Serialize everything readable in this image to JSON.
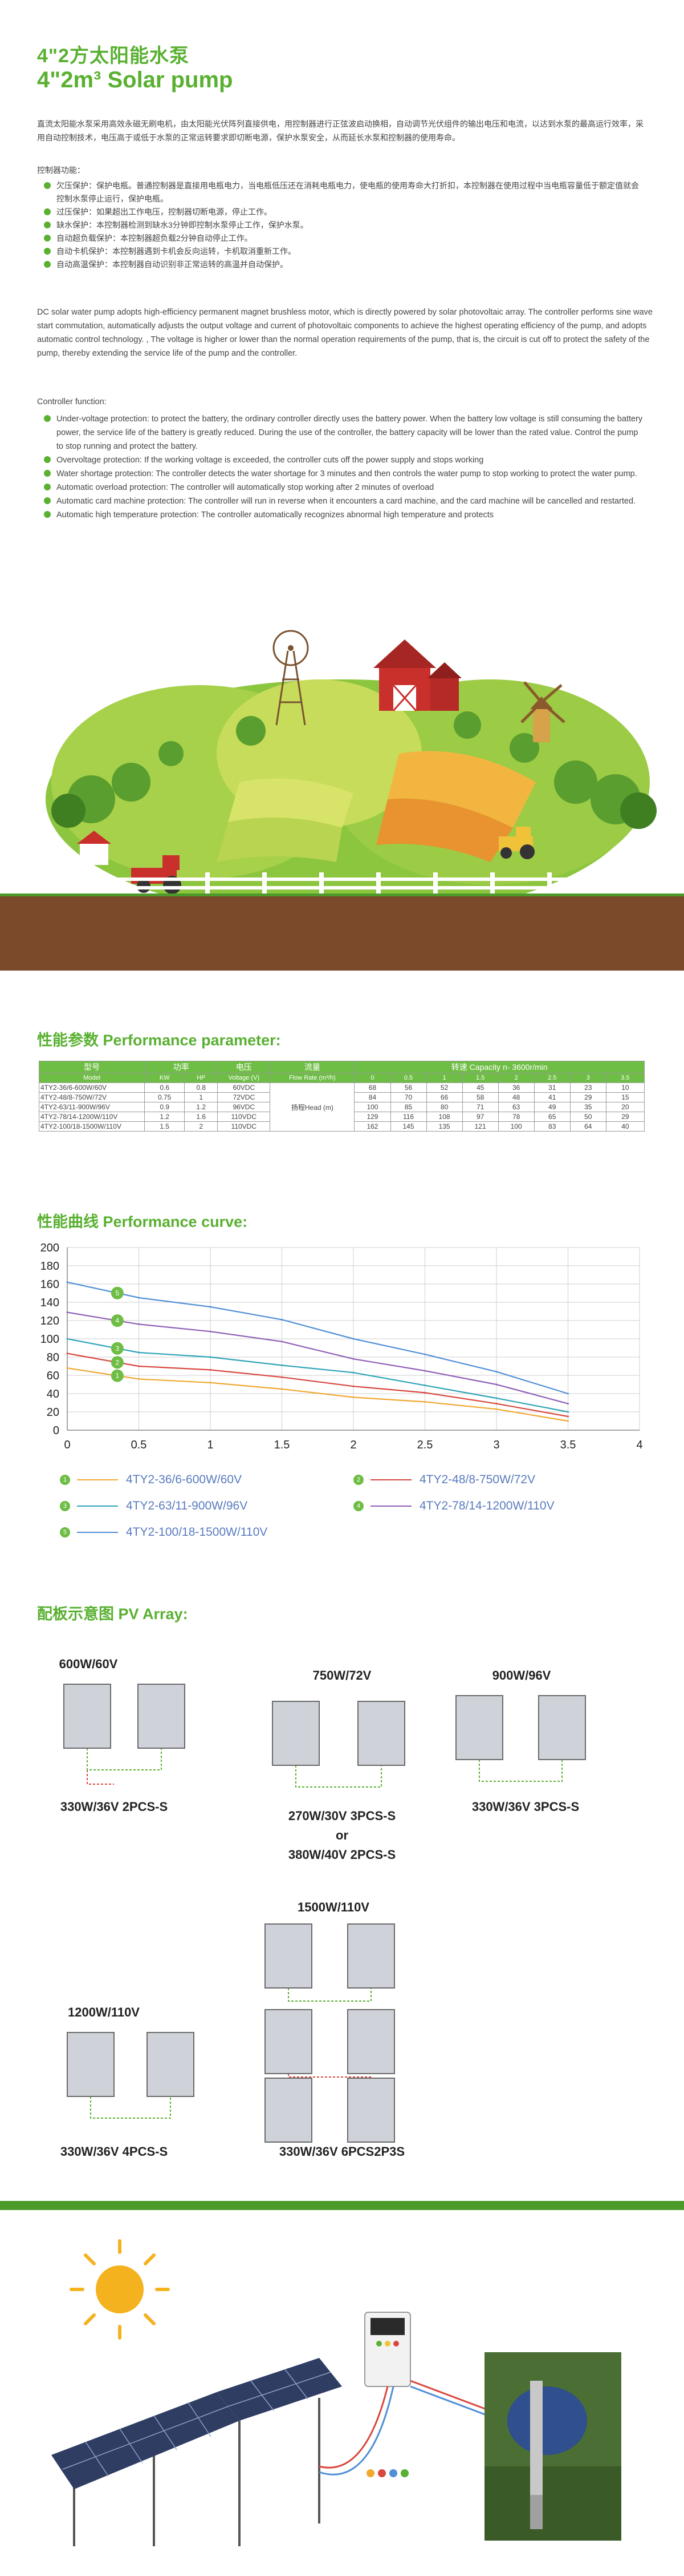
{
  "header": {
    "title_cn": "4\"2方太阳能水泵",
    "title_en": "4\"2m³ Solar pump"
  },
  "intro_cn": "直流太阳能水泵采用高效永磁无刷电机，由太阳能光伏阵列直接供电，用控制器进行正弦波启动换相，自动调节光伏组件的输出电压和电流，以达到水泵的最高运行效率，采用自动控制技术，电压高于或低于水泵的正常运转要求即切断电源，保护水泵安全，从而延长水泵和控制器的使用寿命。",
  "functions_cn": {
    "title": "控制器功能：",
    "items": [
      "欠压保护：保护电瓶。普通控制器是直接用电瓶电力，当电瓶低压还在消耗电瓶电力，使电瓶的使用寿命大打折扣，本控制器在使用过程中当电瓶容量低于额定值就会控制水泵停止运行，保护电瓶。",
      "过压保护：如果超出工作电压，控制器切断电源，停止工作。",
      "缺水保护：本控制器检测到缺水3分钟即控制水泵停止工作，保护水泵。",
      "自动超负载保护：本控制器超负载2分钟自动停止工作。",
      "自动卡机保护：本控制器遇到卡机会反向运转，卡机取消重新工作。",
      "自动高温保护：本控制器自动识别非正常运转的高温并自动保护。"
    ]
  },
  "intro_en": "DC solar water pump adopts high-efficiency permanent magnet brushless motor, which is directly powered by solar photovoltaic array. The controller performs sine wave start commutation, automatically adjusts the output voltage and current of photovoltaic components to achieve the highest operating efficiency of the pump, and adopts automatic control technology. , The voltage is higher or lower than the normal operation requirements of the pump, that is, the circuit is cut off to protect the safety of the pump, thereby extending the service life of the pump and the controller.",
  "functions_en": {
    "title": "Controller function:",
    "items": [
      "Under-voltage protection: to protect the battery, the ordinary controller directly uses the battery power. When the battery low voltage is still consuming the battery power, the service life of the battery is greatly reduced. During the use of the controller, the battery capacity will be lower than the rated value. Control the pump to stop running and protect the battery.",
      "Overvoltage protection: If the working voltage is exceeded, the controller cuts off the power supply and stops working",
      "Water shortage protection: The controller detects the water shortage for 3 minutes and then controls the water pump to stop working to protect the water pump.",
      "Automatic overload protection: The controller will automatically stop working after 2 minutes of overload",
      "Automatic card machine protection: The controller will run in reverse when it encounters a card machine, and the card machine will be cancelled and restarted.",
      "Automatic high temperature protection: The controller automatically recognizes abnormal high temperature and protects"
    ]
  },
  "performance": {
    "title": "性能参数 Performance parameter:",
    "head1": [
      "型号",
      "功率",
      "电压",
      "流量",
      "转速 Capacity n- 3600r/min"
    ],
    "head2": [
      "Model",
      "KW",
      "HP",
      "Voltage (V)",
      "Flow Rate (m³/h)",
      "0",
      "0.5",
      "1",
      "1.5",
      "2",
      "2.5",
      "3",
      "3.5"
    ],
    "head_label": "扬程Head (m)",
    "rows": [
      {
        "model": "4TY2-36/6-600W/60V",
        "kw": "0.6",
        "hp": "0.8",
        "volt": "60VDC",
        "heads": [
          "68",
          "56",
          "52",
          "45",
          "36",
          "31",
          "23",
          "10"
        ]
      },
      {
        "model": "4TY2-48/8-750W/72V",
        "kw": "0.75",
        "hp": "1",
        "volt": "72VDC",
        "heads": [
          "84",
          "70",
          "66",
          "58",
          "48",
          "41",
          "29",
          "15"
        ]
      },
      {
        "model": "4TY2-63/11-900W/96V",
        "kw": "0.9",
        "hp": "1.2",
        "volt": "96VDC",
        "heads": [
          "100",
          "85",
          "80",
          "71",
          "63",
          "49",
          "35",
          "20"
        ]
      },
      {
        "model": "4TY2-78/14-1200W/110V",
        "kw": "1.2",
        "hp": "1.6",
        "volt": "110VDC",
        "heads": [
          "129",
          "116",
          "108",
          "97",
          "78",
          "65",
          "50",
          "29"
        ]
      },
      {
        "model": "4TY2-100/18-1500W/110V",
        "kw": "1.5",
        "hp": "2",
        "volt": "110VDC",
        "heads": [
          "162",
          "145",
          "135",
          "121",
          "100",
          "83",
          "64",
          "40"
        ]
      }
    ]
  },
  "curve": {
    "title": "性能曲线 Performance curve:"
  },
  "chart_data": {
    "type": "line",
    "title": "",
    "xlabel": "",
    "ylabel": "",
    "xlim": [
      0,
      4
    ],
    "ylim": [
      0,
      200
    ],
    "xticks": [
      "0",
      "0.5",
      "1",
      "1.5",
      "2",
      "2.5",
      "3",
      "3.5",
      "4"
    ],
    "yticks": [
      "0",
      "20",
      "40",
      "60",
      "80",
      "100",
      "120",
      "140",
      "160",
      "180",
      "200"
    ],
    "x": [
      0,
      0.5,
      1,
      1.5,
      2,
      2.5,
      3,
      3.5
    ],
    "grid": true,
    "series": [
      {
        "name": "4TY2-36/6-600W/60V",
        "marker": "1",
        "color": "#f0a830",
        "values": [
          68,
          56,
          52,
          45,
          36,
          31,
          23,
          10
        ]
      },
      {
        "name": "4TY2-48/8-750W/72V",
        "marker": "2",
        "color": "#d9473e",
        "values": [
          84,
          70,
          66,
          58,
          48,
          41,
          29,
          15
        ]
      },
      {
        "name": "4TY2-63/11-900W/96V",
        "marker": "3",
        "color": "#2ea4b8",
        "values": [
          100,
          85,
          80,
          71,
          63,
          49,
          35,
          20
        ]
      },
      {
        "name": "4TY2-78/14-1200W/110V",
        "marker": "4",
        "color": "#8f5fb8",
        "values": [
          129,
          116,
          108,
          97,
          78,
          65,
          50,
          29
        ]
      },
      {
        "name": "4TY2-100/18-1500W/110V",
        "marker": "5",
        "color": "#4f8fd6",
        "values": [
          162,
          145,
          135,
          121,
          100,
          83,
          64,
          40
        ]
      }
    ]
  },
  "pv": {
    "title": "配板示意图 PV Array:",
    "configs": [
      {
        "power": "600W/60V",
        "spec": "330W/36V 2PCS-S"
      },
      {
        "power": "750W/72V",
        "spec": "270W/30V 3PCS-S",
        "or": "or",
        "spec2": "380W/40V 2PCS-S"
      },
      {
        "power": "900W/96V",
        "spec": "330W/36V 3PCS-S"
      },
      {
        "power": "1200W/110V",
        "spec": "330W/36V 4PCS-S"
      },
      {
        "power": "1500W/110V",
        "spec": "330W/36V 6PCS2P3S"
      }
    ]
  }
}
